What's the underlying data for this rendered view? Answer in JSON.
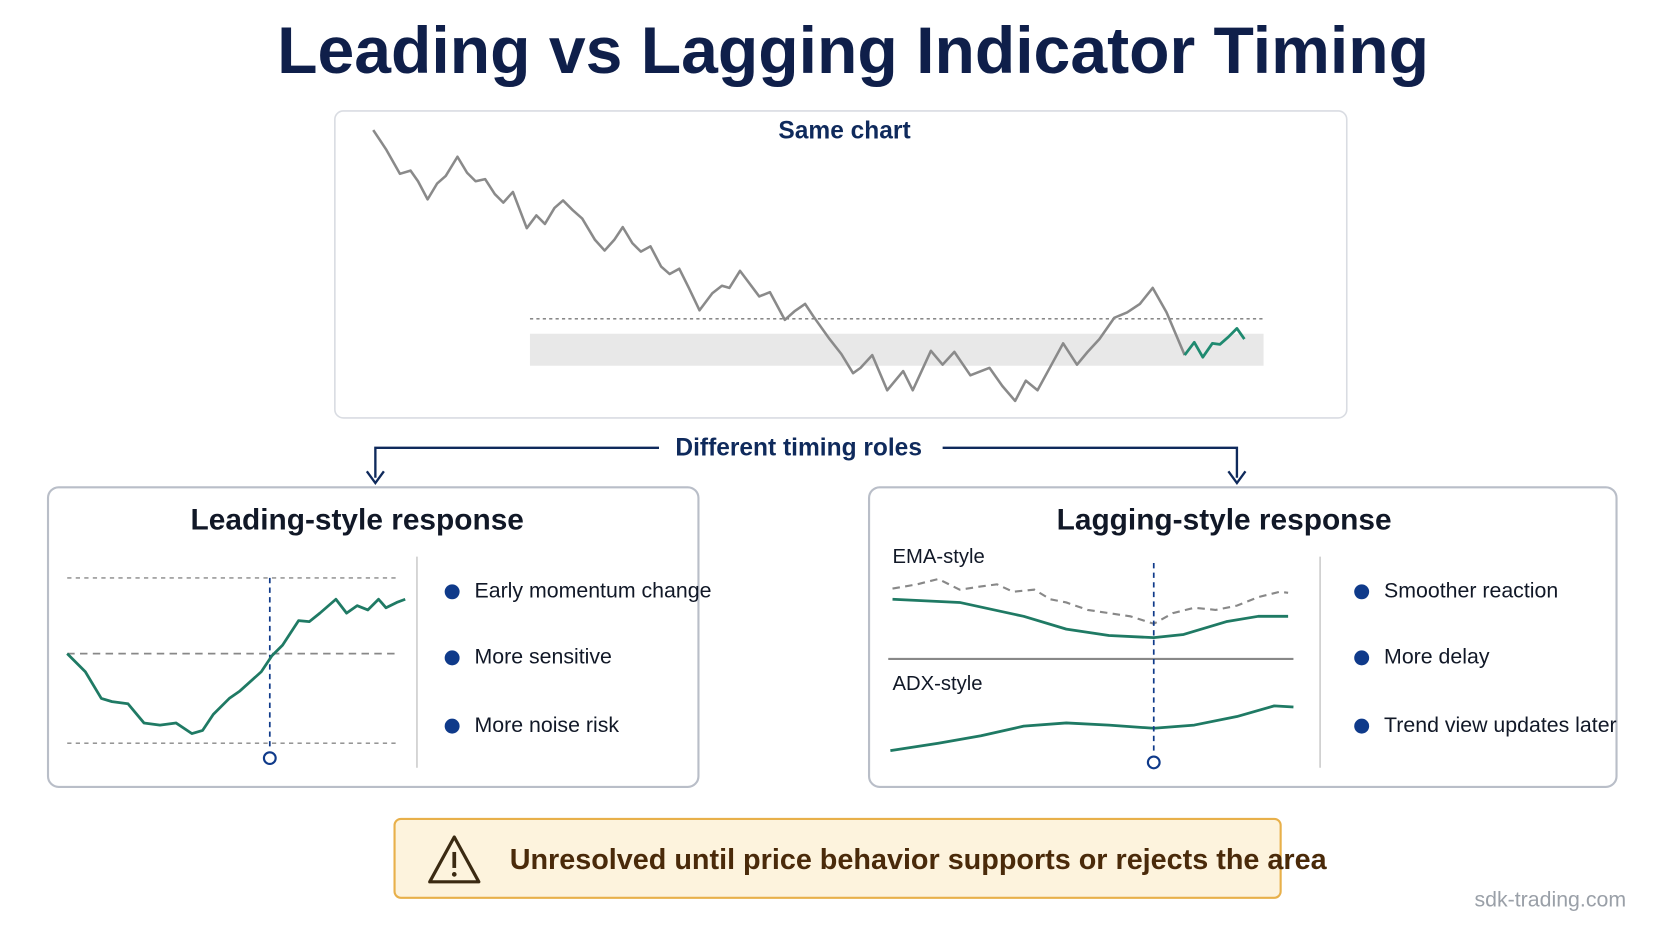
{
  "title": "Leading vs Lagging Indicator Timing",
  "top_panel": {
    "label": "Same chart"
  },
  "connector": {
    "label": "Different timing roles"
  },
  "leading": {
    "title": "Leading-style response",
    "bullets": [
      "Early momentum change",
      "More sensitive",
      "More noise risk"
    ]
  },
  "lagging": {
    "title": "Lagging-style response",
    "panels": [
      "EMA-style",
      "ADX-style"
    ],
    "bullets": [
      "Smoother reaction",
      "More delay",
      "Trend view updates later"
    ]
  },
  "warning": {
    "text": "Unresolved until price behavior supports or rejects the area"
  },
  "footer": {
    "source": "sdk-trading.com"
  }
}
